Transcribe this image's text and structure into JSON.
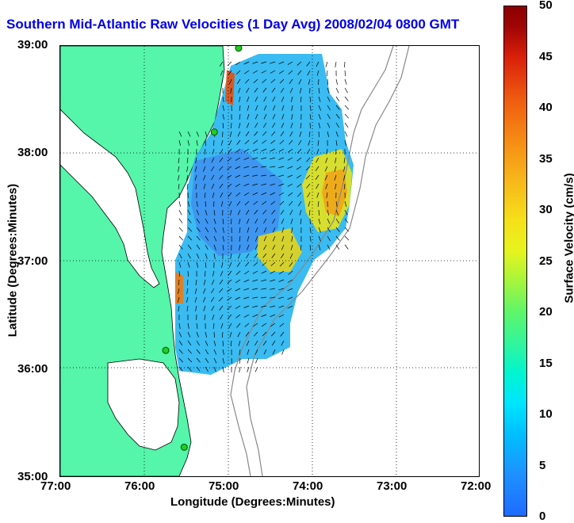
{
  "title": "Southern Mid-Atlantic Raw Velocities (1 Day Avg) 2008/02/04 0800 GMT",
  "map": {
    "x_axis_label": "Longitude (Degrees:Minutes)",
    "y_axis_label": "Latitude (Degrees:Minutes)",
    "x_ticks": [
      "77:00",
      "76:00",
      "75:00",
      "74:00",
      "73:00",
      "72:00"
    ],
    "y_ticks": [
      "39:00",
      "38:00",
      "37:00",
      "36:00",
      "35:00"
    ],
    "lon_range": [
      -77,
      -72
    ],
    "lat_range": [
      35,
      39
    ],
    "land_color": "#55f5aa",
    "station_color": "#22cc22",
    "stations_lon_lat": [
      [
        -74.87,
        38.98
      ],
      [
        -75.16,
        38.2
      ],
      [
        -75.74,
        36.17
      ],
      [
        -75.52,
        35.27
      ]
    ]
  },
  "colorbar": {
    "label": "Surface Velocity (cm/s)",
    "ticks": [
      "50",
      "45",
      "40",
      "35",
      "30",
      "25",
      "20",
      "15",
      "10",
      "5",
      "0"
    ],
    "range": [
      0,
      50
    ]
  }
}
